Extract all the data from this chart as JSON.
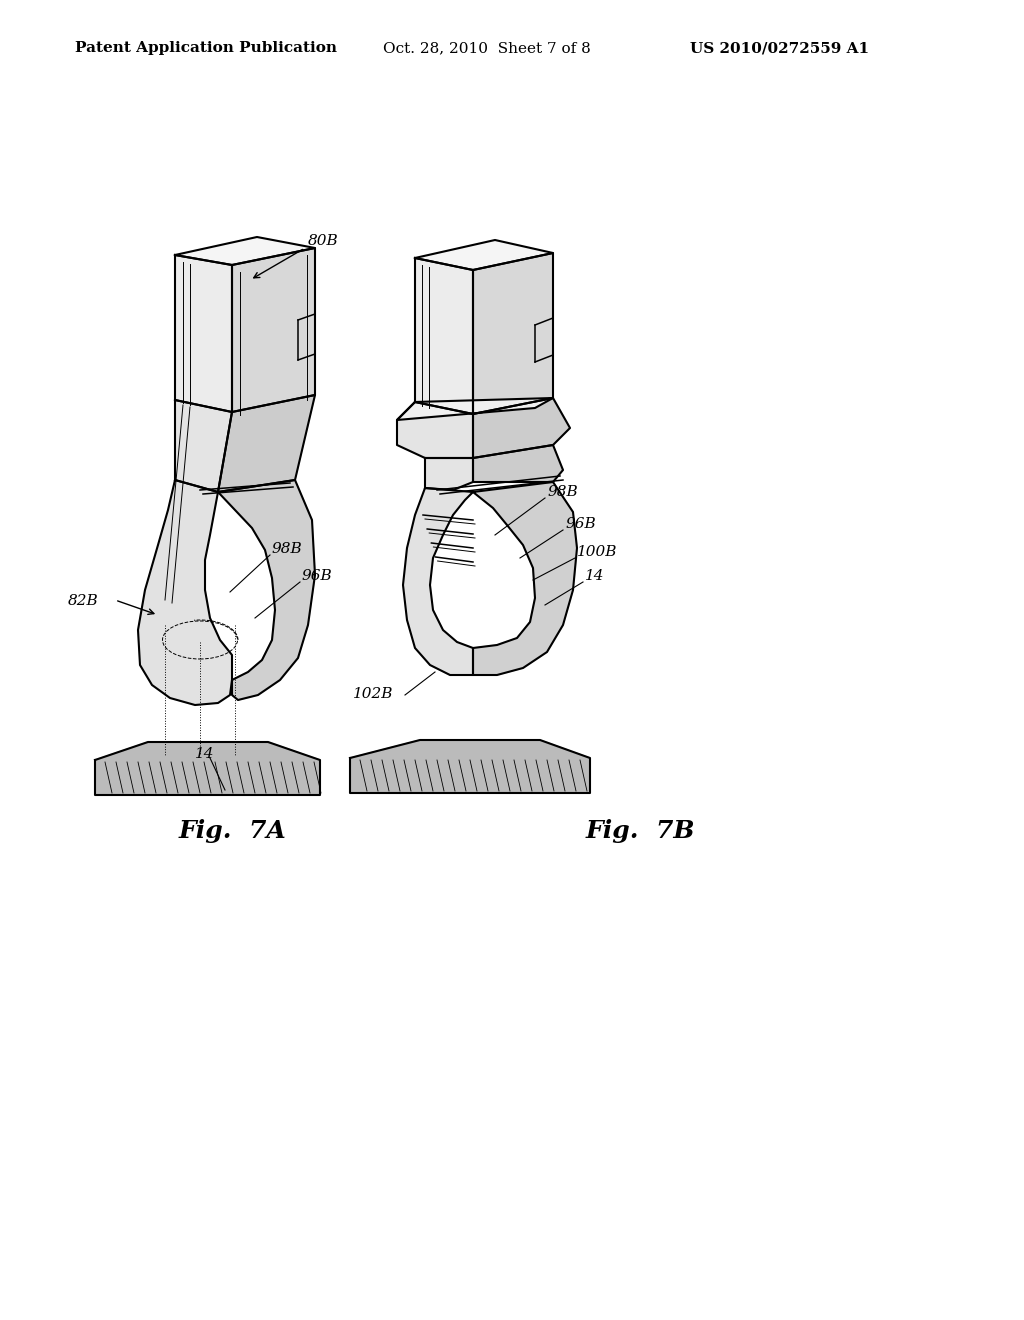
{
  "background_color": "#ffffff",
  "header_left": "Patent Application Publication",
  "header_center": "Oct. 28, 2010  Sheet 7 of 8",
  "header_right": "US 2010/0272559 A1",
  "fig7a_label": "Fig.  7A",
  "fig7b_label": "Fig.  7B",
  "line_color": "#000000",
  "text_color": "#000000",
  "header_fontsize": 11,
  "label_fontsize": 11,
  "fig_label_fontsize": 18
}
